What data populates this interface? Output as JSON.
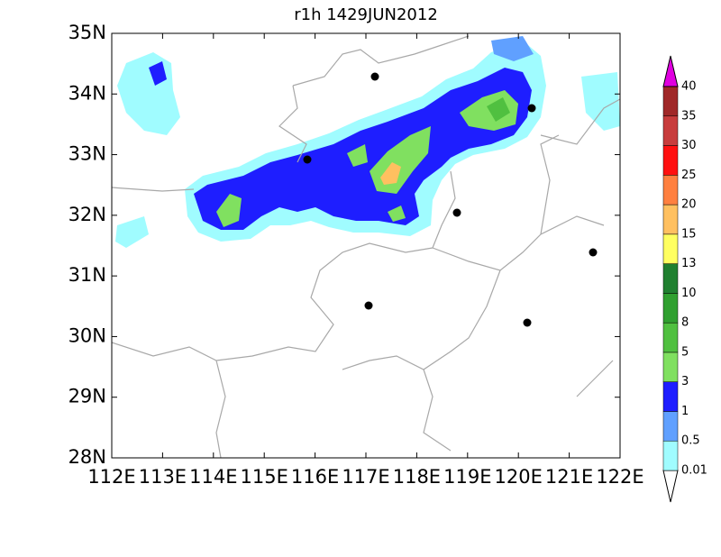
{
  "map": {
    "title": "r1h  1429JUN2012",
    "xlim": [
      112,
      122
    ],
    "ylim": [
      28,
      35
    ],
    "xticks": [
      {
        "value": 112,
        "label": "112E"
      },
      {
        "value": 113,
        "label": "113E"
      },
      {
        "value": 114,
        "label": "114E"
      },
      {
        "value": 115,
        "label": "115E"
      },
      {
        "value": 116,
        "label": "116E"
      },
      {
        "value": 117,
        "label": "117E"
      },
      {
        "value": 118,
        "label": "118E"
      },
      {
        "value": 119,
        "label": "119E"
      },
      {
        "value": 120,
        "label": "120E"
      },
      {
        "value": 121,
        "label": "121E"
      },
      {
        "value": 122,
        "label": "122E"
      }
    ],
    "yticks": [
      {
        "value": 28,
        "label": "28N"
      },
      {
        "value": 29,
        "label": "29N"
      },
      {
        "value": 30,
        "label": "30N"
      },
      {
        "value": 31,
        "label": "31N"
      },
      {
        "value": 32,
        "label": "32N"
      },
      {
        "value": 33,
        "label": "33N"
      },
      {
        "value": 34,
        "label": "34N"
      },
      {
        "value": 35,
        "label": "35N"
      }
    ],
    "colorbar": {
      "levels": [
        0.01,
        0.5,
        1,
        3,
        5,
        8,
        10,
        13,
        15,
        20,
        25,
        30,
        35,
        40
      ],
      "colors": [
        "#a0fcff",
        "#60a0ff",
        "#1e1eff",
        "#80e060",
        "#50c040",
        "#30a030",
        "#208030",
        "#ffff60",
        "#ffc060",
        "#ff8040",
        "#ff1010",
        "#c83c3c",
        "#a02828"
      ],
      "under_color": "#ffffff",
      "over_color": "#e000e0"
    }
  }
}
